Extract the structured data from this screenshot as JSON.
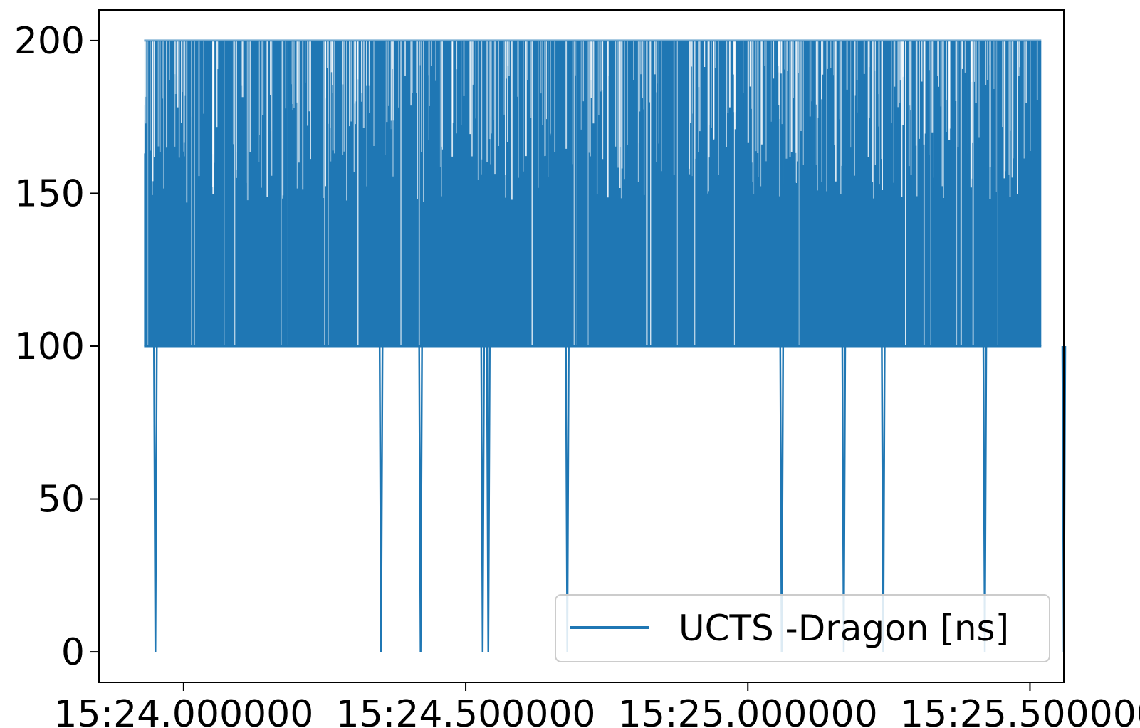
{
  "chart_data": {
    "type": "line",
    "title": "",
    "xlabel": "",
    "ylabel": "",
    "x_axis": {
      "type": "time",
      "range": [
        "15:23.850000",
        "15:25.560000"
      ],
      "ticks": [
        {
          "value": "15:24.000000",
          "label": "15:24.000000"
        },
        {
          "value": "15:24.500000",
          "label": "15:24.500000"
        },
        {
          "value": "15:25.000000",
          "label": "15:25.000000"
        },
        {
          "value": "15:25.500000",
          "label": "15:25.500000"
        }
      ]
    },
    "y_axis": {
      "range": [
        -10,
        210
      ],
      "ticks": [
        0,
        50,
        100,
        150,
        200
      ]
    },
    "grid": false,
    "legend": {
      "placement": "lower-right"
    },
    "series": [
      {
        "name": "UCTS -Dragon [ns]",
        "color": "#1f77b4",
        "band": {
          "x_start": "15:23.930000",
          "x_end": "15:25.520000",
          "y_low": 100,
          "y_high": 200,
          "description_values": "values oscillate rapidly between 100 and 200 ns"
        },
        "drops_to_zero": [
          "15:23.950000",
          "15:24.350000",
          "15:24.420000",
          "15:24.530000",
          "15:24.540000",
          "15:24.680000",
          "15:25.060000",
          "15:25.170000",
          "15:25.240000",
          "15:25.420000",
          "15:25.560000"
        ]
      }
    ]
  }
}
